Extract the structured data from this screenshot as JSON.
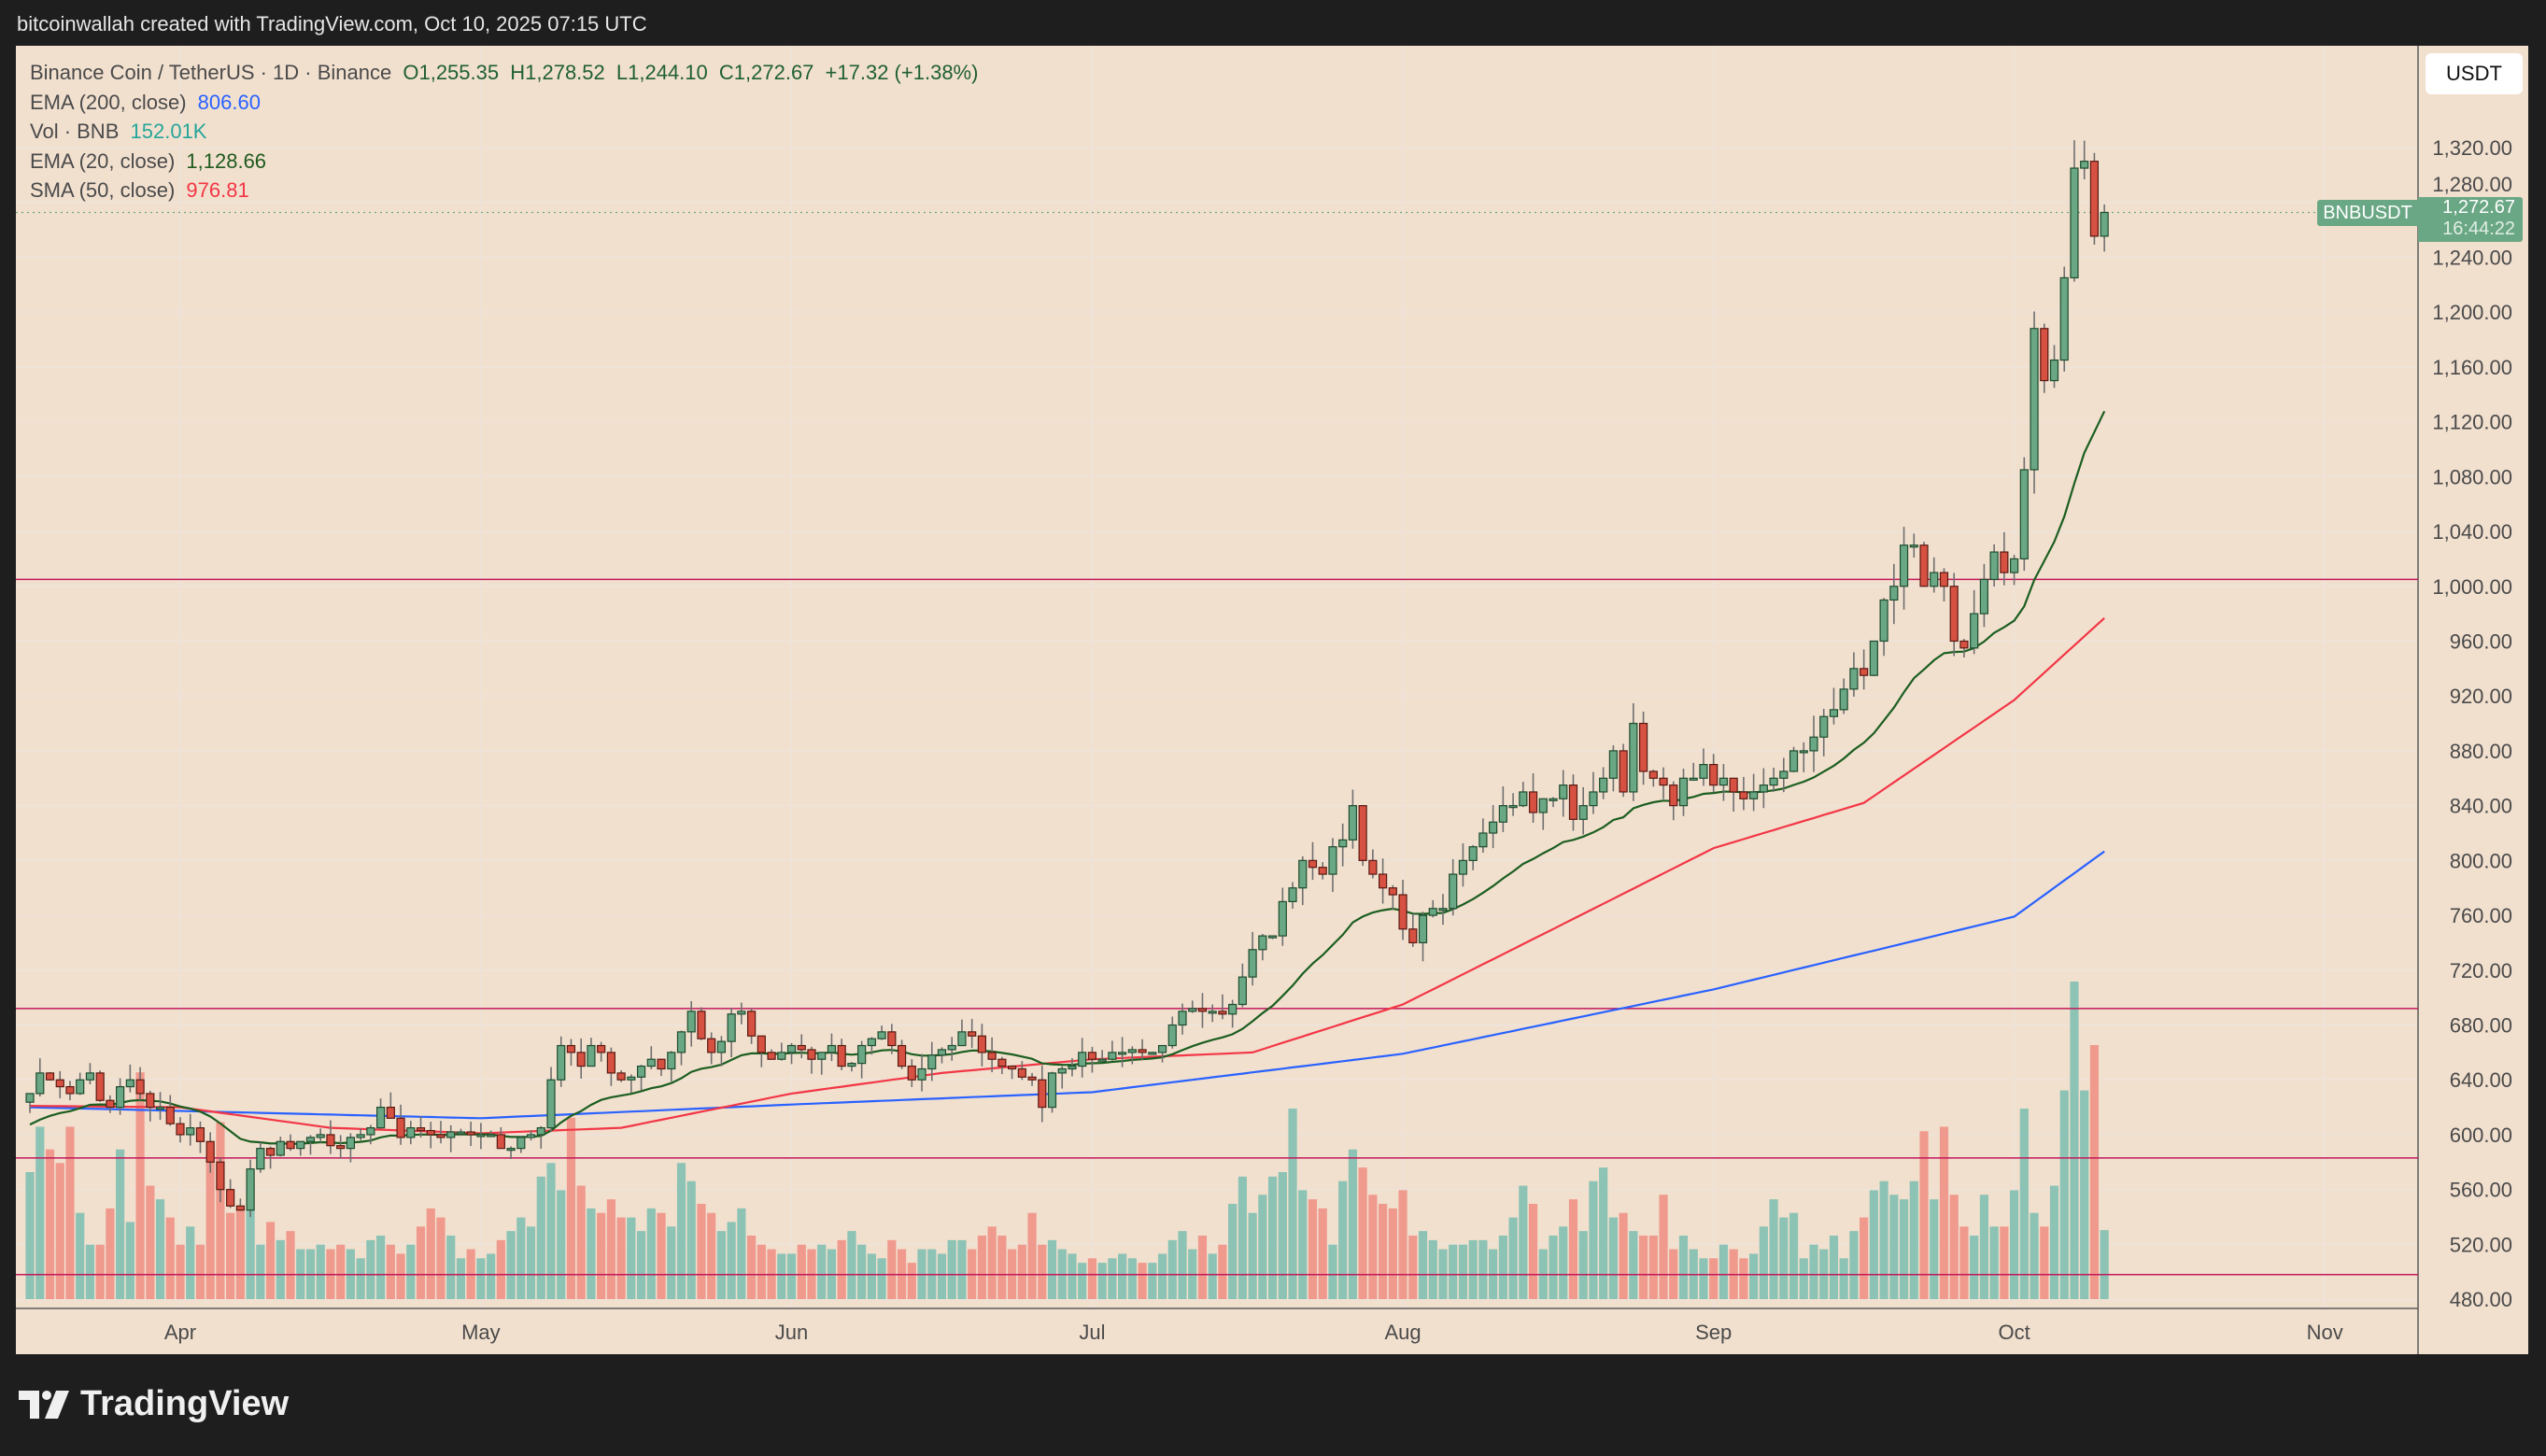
{
  "header": {
    "attribution": "bitcoinwallah created with TradingView.com, Oct 10, 2025 07:15 UTC"
  },
  "legend": {
    "symbol": "Binance Coin / TetherUS · 1D · Binance",
    "open": "O1,255.35",
    "high": "H1,278.52",
    "low": "L1,244.10",
    "close": "C1,272.67",
    "change": "+17.32 (+1.38%)",
    "ema200_label": "EMA (200, close)",
    "ema200_value": "806.60",
    "vol_label": "Vol · BNB",
    "vol_value": "152.01K",
    "ema20_label": "EMA (20, close)",
    "ema20_value": "1,128.66",
    "sma50_label": "SMA (50, close)",
    "sma50_value": "976.81"
  },
  "axis": {
    "currency_button": "USDT"
  },
  "price_tag": {
    "symbol": "BNBUSDT",
    "price": "1,272.67",
    "countdown": "16:44:22"
  },
  "footer": {
    "logo_text": "TradingView"
  },
  "colors": {
    "up": "#6aa784",
    "down": "#d65141",
    "vol_up": "#8cc3b4",
    "vol_down": "#ef9a8d",
    "ema20": "#1b5e20",
    "sma50": "#f23645",
    "ema200": "#2962ff",
    "level": "#c2185b",
    "bg": "#f2e0cf"
  },
  "chart_data": {
    "type": "candlestick",
    "title": "Binance Coin / TetherUS · 1D · Binance",
    "start_date": "2025-03-17",
    "ylim": [
      470,
      1350
    ],
    "yticks": [
      480,
      520,
      560,
      600,
      640,
      680,
      720,
      760,
      800,
      840,
      880,
      920,
      960,
      1000,
      1040,
      1080,
      1120,
      1160,
      1200,
      1240,
      1280,
      1320
    ],
    "ytick_labels": [
      "480.00",
      "520.00",
      "560.00",
      "600.00",
      "640.00",
      "680.00",
      "720.00",
      "760.00",
      "800.00",
      "840.00",
      "880.00",
      "920.00",
      "960.00",
      "1,000.00",
      "1,040.00",
      "1,080.00",
      "1,120.00",
      "1,160.00",
      "1,200.00",
      "1,240.00",
      "1,280.00",
      "1,320.00"
    ],
    "xticks": [
      {
        "label": "Apr",
        "day": 15
      },
      {
        "label": "May",
        "day": 45
      },
      {
        "label": "Jun",
        "day": 76
      },
      {
        "label": "Jul",
        "day": 106
      },
      {
        "label": "Aug",
        "day": 137
      },
      {
        "label": "Sep",
        "day": 168
      },
      {
        "label": "Oct",
        "day": 198
      },
      {
        "label": "Nov",
        "day": 229
      }
    ],
    "closes": [
      630,
      645,
      640,
      635,
      630,
      640,
      645,
      625,
      620,
      635,
      640,
      630,
      620,
      620,
      608,
      600,
      605,
      595,
      580,
      560,
      548,
      545,
      575,
      590,
      585,
      595,
      590,
      595,
      598,
      600,
      592,
      590,
      598,
      600,
      605,
      620,
      612,
      598,
      605,
      603,
      600,
      598,
      602,
      602,
      600,
      600,
      600,
      590,
      590,
      598,
      600,
      605,
      640,
      665,
      660,
      650,
      665,
      660,
      645,
      640,
      642,
      650,
      655,
      648,
      660,
      675,
      690,
      670,
      660,
      668,
      688,
      690,
      672,
      660,
      655,
      660,
      665,
      662,
      655,
      660,
      665,
      650,
      652,
      665,
      670,
      675,
      665,
      650,
      640,
      648,
      658,
      662,
      665,
      675,
      672,
      660,
      655,
      650,
      648,
      642,
      640,
      620,
      645,
      648,
      650,
      660,
      655,
      655,
      660,
      660,
      662,
      660,
      660,
      665,
      680,
      690,
      692,
      690,
      690,
      688,
      695,
      715,
      735,
      745,
      745,
      770,
      780,
      800,
      795,
      790,
      810,
      815,
      840,
      800,
      790,
      780,
      775,
      750,
      740,
      760,
      765,
      765,
      790,
      800,
      810,
      820,
      828,
      840,
      840,
      850,
      835,
      845,
      845,
      855,
      830,
      840,
      850,
      860,
      880,
      850,
      900,
      865,
      860,
      855,
      840,
      860,
      860,
      870,
      855,
      860,
      850,
      845,
      850,
      855,
      860,
      865,
      880,
      880,
      890,
      905,
      910,
      925,
      940,
      935,
      960,
      990,
      1000,
      1030,
      1030,
      1000,
      1010,
      1000,
      960,
      955,
      980,
      1005,
      1025,
      1010,
      1020,
      1085,
      1188,
      1150,
      1165,
      1225,
      1305,
      1310,
      1255.35,
      1272.67
    ],
    "last_candle": {
      "open": 1255.35,
      "high": 1278.52,
      "low": 1244.1,
      "close": 1272.67
    },
    "volume_k": [
      280,
      380,
      330,
      300,
      380,
      190,
      120,
      120,
      200,
      330,
      170,
      500,
      250,
      220,
      180,
      120,
      160,
      120,
      330,
      390,
      190,
      200,
      260,
      120,
      170,
      130,
      150,
      110,
      110,
      120,
      110,
      120,
      110,
      90,
      130,
      140,
      120,
      100,
      120,
      160,
      200,
      180,
      140,
      90,
      110,
      90,
      100,
      130,
      150,
      180,
      160,
      270,
      300,
      240,
      400,
      250,
      200,
      190,
      220,
      180,
      180,
      150,
      200,
      190,
      160,
      300,
      260,
      210,
      190,
      150,
      170,
      200,
      140,
      120,
      110,
      100,
      100,
      120,
      110,
      120,
      110,
      130,
      150,
      120,
      100,
      90,
      130,
      110,
      80,
      110,
      110,
      100,
      130,
      130,
      110,
      140,
      160,
      140,
      110,
      120,
      190,
      120,
      130,
      110,
      100,
      80,
      90,
      80,
      90,
      100,
      90,
      80,
      80,
      100,
      130,
      150,
      110,
      140,
      100,
      120,
      210,
      270,
      190,
      230,
      270,
      280,
      420,
      240,
      220,
      200,
      120,
      260,
      330,
      290,
      230,
      210,
      200,
      240,
      140,
      150,
      130,
      110,
      120,
      120,
      130,
      130,
      110,
      140,
      180,
      250,
      210,
      110,
      140,
      160,
      220,
      150,
      260,
      290,
      180,
      190,
      150,
      140,
      140,
      230,
      110,
      140,
      110,
      90,
      90,
      120,
      110,
      90,
      100,
      160,
      220,
      180,
      190,
      90,
      120,
      110,
      140,
      90,
      150,
      180,
      240,
      260,
      230,
      220,
      260,
      370,
      220,
      380,
      230,
      160,
      140,
      230,
      160,
      160,
      240,
      420,
      190,
      160,
      250,
      460,
      700,
      460,
      560,
      152.01
    ],
    "ema20_seed": 605,
    "sma50_points": [
      [
        0,
        621
      ],
      [
        15,
        620
      ],
      [
        30,
        605
      ],
      [
        45,
        601
      ],
      [
        59,
        605
      ],
      [
        76,
        630
      ],
      [
        91,
        645
      ],
      [
        106,
        655
      ],
      [
        122,
        660
      ],
      [
        137,
        695
      ],
      [
        152,
        750
      ],
      [
        168,
        809
      ],
      [
        183,
        842
      ],
      [
        198,
        917
      ],
      [
        207,
        976.81
      ]
    ],
    "ema200_points": [
      [
        0,
        620
      ],
      [
        45,
        612
      ],
      [
        76,
        622
      ],
      [
        106,
        631
      ],
      [
        137,
        659
      ],
      [
        168,
        706
      ],
      [
        198,
        759
      ],
      [
        207,
        806.6
      ]
    ],
    "horizontal_levels": [
      1005,
      692,
      583,
      498
    ],
    "current_price": 1272.67
  }
}
